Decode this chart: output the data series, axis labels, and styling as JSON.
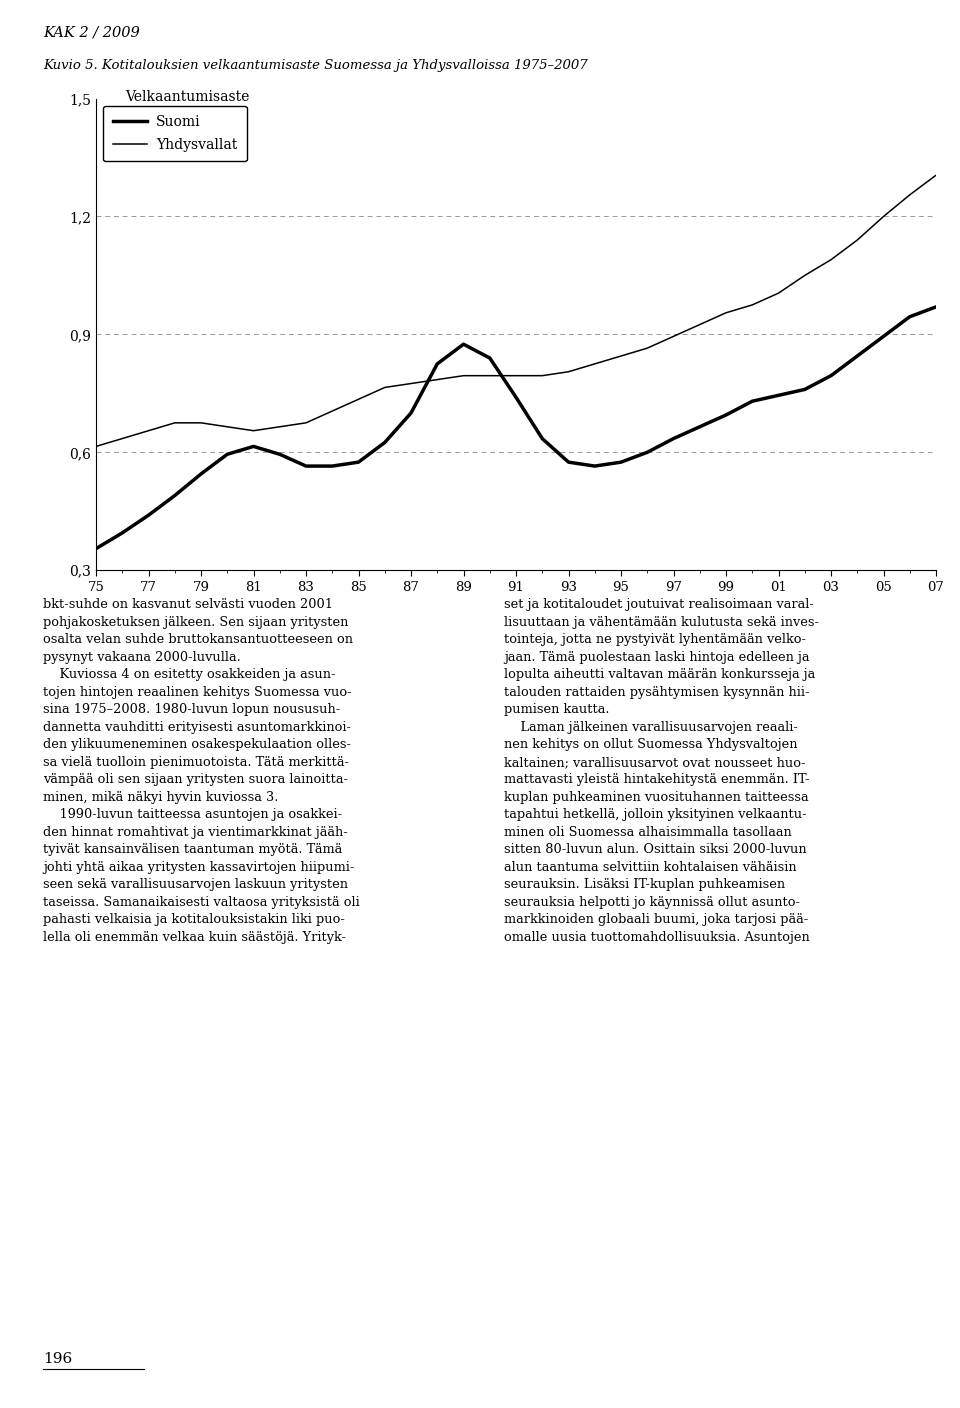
{
  "title_top": "KAK 2 / 2009",
  "title_chart": "Kuvio 5. Kotitalouksien velkaantumisaste Suomessa ja Yhdysvalloissa 1975–2007",
  "ylabel": "Velkaantumisaste",
  "legend": [
    "Suomi",
    "Yhdysvallat"
  ],
  "xlim": [
    1975,
    2007
  ],
  "ylim": [
    0.3,
    1.5
  ],
  "yticks": [
    0.3,
    0.6,
    0.9,
    1.2,
    1.5
  ],
  "ytick_labels": [
    "0,3",
    "0,6",
    "0,9",
    "1,2",
    "1,5"
  ],
  "xtick_labels": [
    "75",
    "77",
    "79",
    "81",
    "83",
    "85",
    "87",
    "89",
    "91",
    "93",
    "95",
    "97",
    "99",
    "01",
    "03",
    "05",
    "07"
  ],
  "suomi_x": [
    1975,
    1976,
    1977,
    1978,
    1979,
    1980,
    1981,
    1982,
    1983,
    1984,
    1985,
    1986,
    1987,
    1988,
    1989,
    1990,
    1991,
    1992,
    1993,
    1994,
    1995,
    1996,
    1997,
    1998,
    1999,
    2000,
    2001,
    2002,
    2003,
    2004,
    2005,
    2006,
    2007
  ],
  "suomi_y": [
    0.355,
    0.395,
    0.44,
    0.49,
    0.545,
    0.595,
    0.615,
    0.595,
    0.565,
    0.565,
    0.575,
    0.625,
    0.7,
    0.825,
    0.875,
    0.84,
    0.74,
    0.635,
    0.575,
    0.565,
    0.575,
    0.6,
    0.635,
    0.665,
    0.695,
    0.73,
    0.745,
    0.76,
    0.795,
    0.845,
    0.895,
    0.945,
    0.97
  ],
  "usa_x": [
    1975,
    1976,
    1977,
    1978,
    1979,
    1980,
    1981,
    1982,
    1983,
    1984,
    1985,
    1986,
    1987,
    1988,
    1989,
    1990,
    1991,
    1992,
    1993,
    1994,
    1995,
    1996,
    1997,
    1998,
    1999,
    2000,
    2001,
    2002,
    2003,
    2004,
    2005,
    2006,
    2007
  ],
  "usa_y": [
    0.615,
    0.635,
    0.655,
    0.675,
    0.675,
    0.665,
    0.655,
    0.665,
    0.675,
    0.705,
    0.735,
    0.765,
    0.775,
    0.785,
    0.795,
    0.795,
    0.795,
    0.795,
    0.805,
    0.825,
    0.845,
    0.865,
    0.895,
    0.925,
    0.955,
    0.975,
    1.005,
    1.05,
    1.09,
    1.14,
    1.2,
    1.255,
    1.305
  ],
  "background_color": "#ffffff",
  "line_color": "#000000",
  "grid_color": "#999999",
  "grid_linestyle": "--",
  "suomi_linewidth": 2.5,
  "usa_linewidth": 1.1,
  "body_left": "bkt-suhde on kasvanut selvästi vuoden 2001\npohjakosketuksen jälkeen. Sen sijaan yritysten\nosalta velan suhde bruttokansantuotteeseen on\npysynyt vakaana 2000-luvulla.\n    Kuviossa 4 on esitetty osakkeiden ja asun-\ntojen hintojen reaalinen kehitys Suomessa vuo-\nsina 1975–2008. 1980-luvun lopun noususuh-\ndannetta vauhditti erityisesti asuntomarkkinoi-\nden ylikuumeneminen osakespekulaation olles-\nsa vielä tuolloin pienimuotoista. Tätä merkittä-\nvämpää oli sen sijaan yritysten suora lainoitta-\nminen, mikä näkyi hyvin kuviossa 3.\n    1990-luvun taitteessa asuntojen ja osakkei-\nden hinnat romahtivat ja vientimarkkinat jääh-\ntyivät kansainvälisen taantuman myötä. Tämä\njohti yhtä aikaa yritysten kassavirtojen hiipumi-\nseen sekä varallisuusarvojen laskuun yritysten\ntaseissa. Samanaikaisesti valtaosa yrityksistä oli\npahasti velkaisia ja kotitalouksistakin liki puo-\nlella oli enemmän velkaa kuin säästöjä. Yrityk-",
  "body_right": "set ja kotitaloudet joutuivat realisoimaan varal-\nlisuuttaan ja vähentämään kulutusta sekä inves-\ntointeja, jotta ne pystyivät lyhentämään velko-\njaan. Tämä puolestaan laski hintoja edelleen ja\nlopulta aiheutti valtavan määrän konkursseja ja\ntalouden rattaiden pysähtymisen kysynnän hii-\npumisen kautta.\n    Laman jälkeinen varallisuusarvojen reaali-\nnen kehitys on ollut Suomessa Yhdysvaltojen\nkaltainen; varallisuusarvot ovat nousseet huo-\nmattavasti yleistä hintakehitystä enemmän. IT-\nkuplan puhkeaminen vuosituhannen taitteessa\ntapahtui hetkellä, jolloin yksityinen velkaantu-\nminen oli Suomessa alhaisimmalla tasollaan\nsitten 80-luvun alun. Osittain siksi 2000-luvun\nalun taantuma selvittiin kohtalaisen vähäisin\nseurauksin. Lisäksi IT-kuplan puhkeamisen\nseurauksia helpotti jo käynnissä ollut asunto-\nmarkkinoiden globaali buumi, joka tarjosi pää-\nomalle uusia tuottomahdollisuuksia. Asuntojen",
  "page_number": "196"
}
